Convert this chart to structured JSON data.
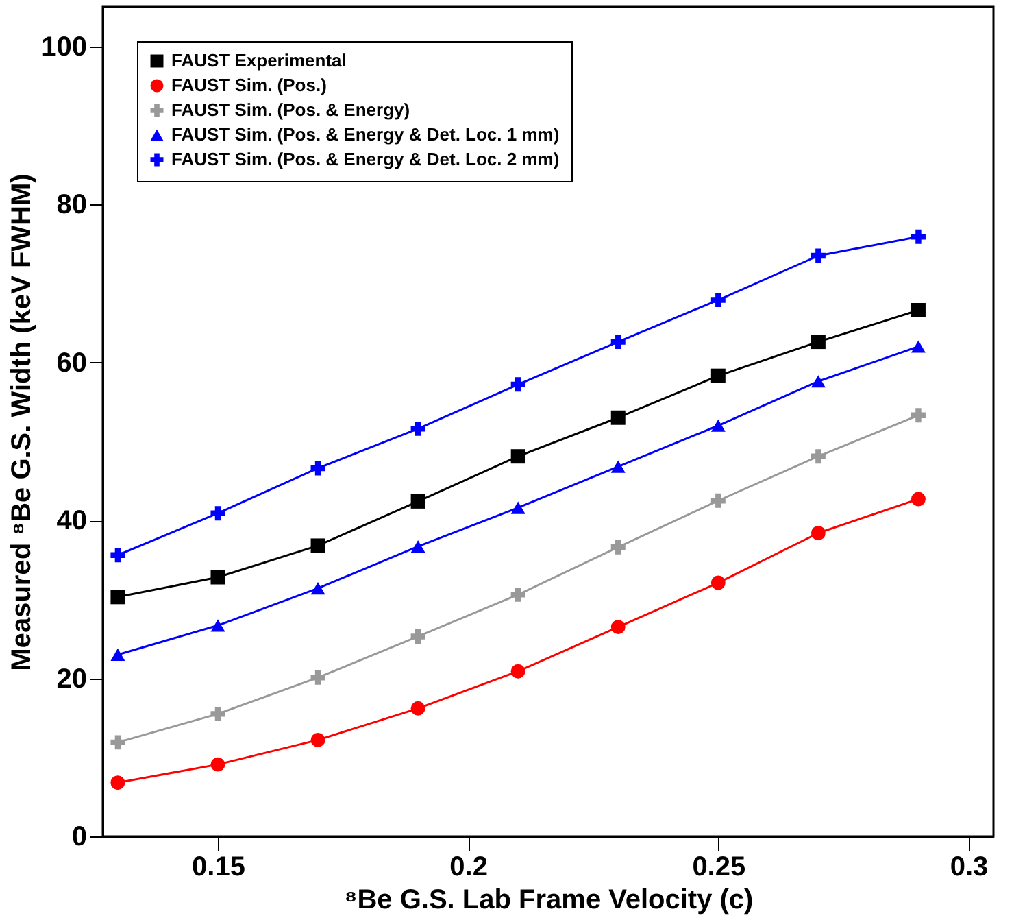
{
  "chart_data": {
    "type": "line",
    "xlabel": "⁸Be G.S. Lab Frame Velocity (c)",
    "ylabel": "Measured  ⁸Be G.S. Width (keV FWHM)",
    "x": [
      0.13,
      0.15,
      0.17,
      0.19,
      0.21,
      0.23,
      0.25,
      0.27,
      0.29
    ],
    "series": [
      {
        "name": "FAUST Experimental",
        "color": "#000000",
        "marker": "square",
        "values": [
          30.3,
          32.8,
          36.8,
          42.4,
          48.1,
          53.0,
          58.3,
          62.6,
          66.6
        ]
      },
      {
        "name": "FAUST Sim. (Pos.)",
        "color": "#ff0000",
        "marker": "circle",
        "values": [
          6.8,
          9.1,
          12.2,
          16.2,
          20.9,
          26.5,
          32.1,
          38.4,
          42.7
        ]
      },
      {
        "name": "FAUST Sim. (Pos. & Energy)",
        "color": "#999999",
        "marker": "cross",
        "values": [
          11.9,
          15.5,
          20.1,
          25.3,
          30.6,
          36.6,
          42.5,
          48.1,
          53.3
        ]
      },
      {
        "name": "FAUST Sim. (Pos. & Energy & Det. Loc. 1 mm)",
        "color": "#0000ff",
        "marker": "triangle",
        "values": [
          23.0,
          26.7,
          31.4,
          36.7,
          41.6,
          46.8,
          52.0,
          57.6,
          62.0
        ]
      },
      {
        "name": "FAUST Sim. (Pos. & Energy & Det. Loc. 2 mm)",
        "color": "#0000ff",
        "marker": "cross",
        "values": [
          35.6,
          40.9,
          46.6,
          51.6,
          57.2,
          62.6,
          67.9,
          73.5,
          75.9
        ]
      }
    ],
    "xlim": [
      0.127,
      0.305
    ],
    "ylim": [
      0,
      105
    ],
    "xticks": [
      0.15,
      {
        "value": 0.2,
        "label": "0.2"
      },
      0.25,
      {
        "value": 0.3,
        "label": "0.3"
      }
    ],
    "yticks": [
      0,
      20,
      40,
      60,
      80,
      100
    ],
    "grid": false,
    "legend": "top left",
    "line_style": "solid"
  }
}
